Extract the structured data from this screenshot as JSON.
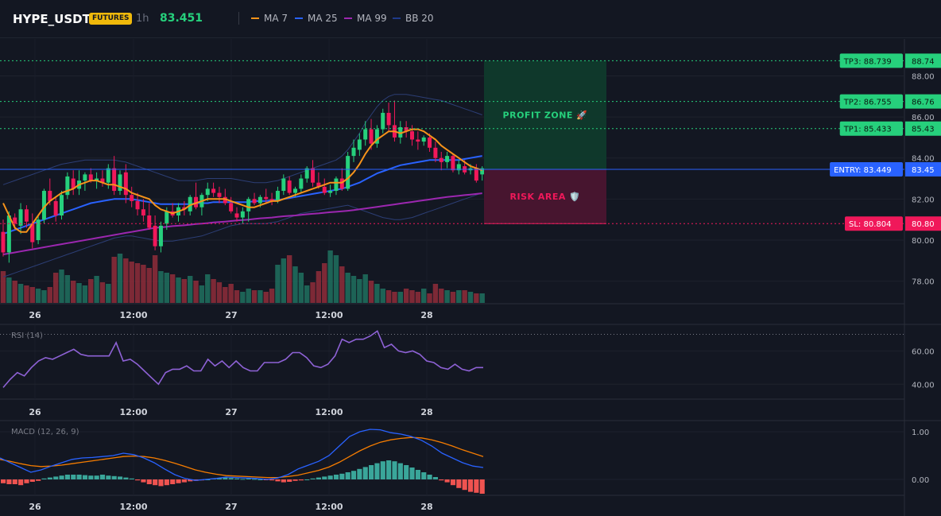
{
  "header": {
    "symbol": "HYPE_USDT",
    "badge": "FUTURES",
    "timeframe": "1h",
    "last_price": "83.451",
    "legend": [
      {
        "label": "MA 7",
        "color": "#f7931a"
      },
      {
        "label": "MA 25",
        "color": "#2962ff"
      },
      {
        "label": "MA 99",
        "color": "#9c27b0"
      },
      {
        "label": "BB 20",
        "color": "#1e3a8a"
      }
    ]
  },
  "colors": {
    "up": "#26d07c",
    "down": "#f0185a",
    "vol_up": "#1f6b5c",
    "vol_down": "#8a2b38",
    "ma7": "#f7931a",
    "ma25": "#2962ff",
    "ma99": "#9c27b0",
    "bb": "#2c3e75",
    "rsi": "#8e62d6",
    "macd": "#2962ff",
    "signal": "#f57c00",
    "hist_up": "#3aa69a",
    "hist_down": "#ef5350"
  },
  "chart_data": [
    {
      "type": "candlestick",
      "ylim": [
        76.9,
        89.8
      ],
      "y_ticks": [
        "78.00",
        "80.00",
        "82.00",
        "84.00",
        "86.00",
        "88.00"
      ],
      "x_ticks": [
        "26",
        "12:00",
        "27",
        "12:00",
        "28"
      ],
      "candles": [
        [
          80.4,
          81.0,
          79.2,
          79.4
        ],
        [
          79.4,
          81.4,
          78.9,
          81.2
        ],
        [
          81.1,
          81.3,
          80.5,
          80.8
        ],
        [
          80.7,
          81.8,
          80.3,
          81.5
        ],
        [
          81.5,
          81.7,
          80.6,
          80.9
        ],
        [
          80.8,
          81.3,
          79.6,
          79.9
        ],
        [
          80.0,
          81.2,
          79.8,
          81.0
        ],
        [
          81.0,
          82.5,
          80.8,
          82.4
        ],
        [
          82.4,
          83.0,
          81.7,
          81.9
        ],
        [
          81.9,
          82.1,
          80.9,
          81.2
        ],
        [
          81.2,
          82.4,
          81.0,
          82.2
        ],
        [
          82.2,
          83.3,
          82.0,
          83.1
        ],
        [
          83.0,
          83.4,
          82.2,
          82.5
        ],
        [
          82.5,
          83.4,
          82.2,
          82.9
        ],
        [
          82.9,
          83.3,
          82.4,
          83.2
        ],
        [
          83.2,
          83.5,
          82.8,
          82.9
        ],
        [
          82.9,
          83.3,
          82.5,
          83.0
        ],
        [
          83.0,
          83.4,
          82.6,
          82.8
        ],
        [
          82.8,
          83.7,
          82.5,
          83.5
        ],
        [
          83.5,
          84.1,
          82.2,
          82.4
        ],
        [
          82.4,
          83.4,
          82.2,
          83.2
        ],
        [
          83.3,
          83.7,
          81.8,
          82.2
        ],
        [
          82.2,
          82.6,
          81.6,
          81.9
        ],
        [
          81.9,
          82.3,
          81.2,
          81.5
        ],
        [
          81.5,
          82.0,
          80.9,
          81.2
        ],
        [
          81.2,
          81.8,
          80.5,
          80.6
        ],
        [
          80.7,
          81.2,
          79.5,
          79.7
        ],
        [
          79.7,
          80.9,
          79.4,
          80.7
        ],
        [
          80.8,
          81.6,
          80.5,
          81.4
        ],
        [
          81.4,
          81.8,
          81.1,
          81.2
        ],
        [
          81.2,
          81.8,
          80.9,
          81.6
        ],
        [
          81.6,
          81.9,
          81.2,
          81.5
        ],
        [
          81.4,
          82.2,
          81.2,
          82.1
        ],
        [
          82.1,
          82.8,
          81.5,
          81.6
        ],
        [
          81.6,
          82.3,
          81.2,
          82.2
        ],
        [
          82.2,
          82.8,
          81.9,
          82.5
        ],
        [
          82.5,
          82.8,
          82.1,
          82.3
        ],
        [
          82.3,
          82.6,
          81.8,
          82.1
        ],
        [
          82.1,
          82.5,
          81.7,
          81.8
        ],
        [
          81.8,
          82.1,
          81.3,
          81.4
        ],
        [
          81.3,
          81.6,
          80.9,
          81.1
        ],
        [
          81.1,
          81.6,
          80.8,
          81.4
        ],
        [
          81.4,
          82.1,
          80.9,
          82.0
        ],
        [
          82.0,
          82.3,
          81.7,
          81.8
        ],
        [
          81.8,
          82.2,
          81.6,
          82.1
        ],
        [
          82.1,
          82.5,
          81.8,
          82.0
        ],
        [
          82.0,
          82.3,
          81.7,
          81.9
        ],
        [
          81.9,
          82.6,
          81.8,
          82.4
        ],
        [
          82.4,
          83.2,
          82.2,
          83.0
        ],
        [
          82.9,
          83.1,
          82.2,
          82.3
        ],
        [
          82.3,
          82.6,
          82.1,
          82.5
        ],
        [
          82.5,
          83.2,
          82.3,
          83.0
        ],
        [
          83.0,
          83.6,
          82.8,
          83.5
        ],
        [
          83.5,
          83.9,
          82.6,
          82.8
        ],
        [
          82.8,
          83.3,
          82.5,
          82.6
        ],
        [
          82.6,
          83.0,
          82.2,
          82.3
        ],
        [
          82.3,
          82.7,
          82.1,
          82.4
        ],
        [
          82.4,
          83.1,
          82.2,
          83.0
        ],
        [
          83.0,
          83.5,
          82.4,
          82.5
        ],
        [
          82.5,
          84.3,
          82.4,
          84.1
        ],
        [
          84.1,
          84.9,
          83.8,
          84.5
        ],
        [
          84.4,
          85.2,
          84.1,
          84.9
        ],
        [
          84.9,
          85.8,
          84.6,
          85.4
        ],
        [
          85.4,
          85.9,
          84.4,
          84.7
        ],
        [
          84.7,
          85.6,
          84.5,
          85.4
        ],
        [
          85.4,
          86.4,
          85.2,
          86.2
        ],
        [
          86.2,
          86.7,
          85.3,
          85.6
        ],
        [
          85.6,
          86.8,
          84.8,
          85.0
        ],
        [
          85.0,
          85.8,
          84.7,
          85.5
        ],
        [
          85.5,
          85.8,
          85.0,
          85.3
        ],
        [
          85.3,
          85.6,
          84.6,
          84.9
        ],
        [
          84.9,
          85.3,
          84.4,
          84.8
        ],
        [
          84.8,
          85.1,
          84.6,
          85.0
        ],
        [
          85.0,
          85.2,
          84.3,
          84.5
        ],
        [
          84.5,
          84.8,
          83.8,
          84.0
        ],
        [
          84.0,
          84.3,
          83.4,
          83.8
        ],
        [
          83.8,
          84.3,
          83.5,
          84.1
        ],
        [
          84.1,
          84.2,
          83.3,
          83.4
        ],
        [
          83.4,
          83.9,
          83.2,
          83.7
        ],
        [
          83.6,
          83.9,
          83.2,
          83.3
        ],
        [
          83.4,
          83.7,
          83.2,
          83.5
        ],
        [
          83.5,
          83.7,
          82.8,
          82.9
        ],
        [
          83.2,
          83.6,
          82.9,
          83.5
        ]
      ],
      "volume": [
        40,
        32,
        28,
        24,
        22,
        20,
        18,
        16,
        20,
        38,
        42,
        35,
        28,
        25,
        22,
        30,
        34,
        26,
        24,
        58,
        62,
        56,
        52,
        50,
        48,
        44,
        60,
        40,
        38,
        36,
        32,
        30,
        34,
        28,
        22,
        36,
        30,
        26,
        20,
        24,
        16,
        14,
        18,
        16,
        16,
        14,
        18,
        48,
        56,
        60,
        46,
        38,
        22,
        26,
        40,
        50,
        66,
        60,
        46,
        38,
        34,
        30,
        36,
        28,
        24,
        18,
        16,
        14,
        14,
        18,
        16,
        14,
        18,
        12,
        24,
        18,
        16,
        14,
        16,
        16,
        14,
        12,
        12
      ],
      "ma7": [
        81.8,
        81.2,
        80.6,
        80.4,
        80.4,
        80.8,
        81.2,
        81.6,
        81.9,
        82.1,
        82.3,
        82.4,
        82.5,
        82.7,
        82.8,
        82.9,
        82.9,
        82.8,
        82.7,
        82.7,
        82.6,
        82.5,
        82.3,
        82.2,
        82.1,
        82.0,
        81.7,
        81.5,
        81.4,
        81.3,
        81.4,
        81.5,
        81.7,
        81.8,
        81.9,
        82.0,
        82.0,
        82.0,
        82.0,
        81.9,
        81.8,
        81.7,
        81.6,
        81.6,
        81.7,
        81.8,
        81.9,
        81.9,
        82.0,
        82.1,
        82.2,
        82.3,
        82.4,
        82.5,
        82.6,
        82.7,
        82.8,
        82.8,
        82.8,
        83.0,
        83.3,
        83.7,
        84.2,
        84.6,
        84.9,
        85.1,
        85.3,
        85.3,
        85.2,
        85.3,
        85.4,
        85.4,
        85.3,
        85.1,
        84.9,
        84.6,
        84.4,
        84.2,
        84.0,
        83.8,
        83.6,
        83.5,
        83.4
      ],
      "ma25": [
        80.3,
        80.4,
        80.5,
        80.6,
        80.7,
        80.8,
        80.9,
        81.0,
        81.1,
        81.2,
        81.3,
        81.4,
        81.5,
        81.6,
        81.7,
        81.8,
        81.85,
        81.9,
        81.95,
        82.0,
        82.0,
        82.0,
        82.0,
        81.95,
        81.9,
        81.85,
        81.8,
        81.75,
        81.75,
        81.75,
        81.75,
        81.75,
        81.75,
        81.8,
        81.8,
        81.8,
        81.85,
        81.85,
        81.85,
        81.85,
        81.85,
        81.85,
        81.85,
        81.9,
        81.9,
        81.9,
        81.95,
        81.95,
        82.0,
        82.05,
        82.1,
        82.15,
        82.2,
        82.25,
        82.3,
        82.35,
        82.4,
        82.45,
        82.5,
        82.6,
        82.7,
        82.8,
        82.95,
        83.1,
        83.25,
        83.35,
        83.45,
        83.55,
        83.65,
        83.7,
        83.75,
        83.8,
        83.85,
        83.9,
        83.9,
        83.9,
        83.9,
        83.9,
        83.9,
        83.95,
        84.0,
        84.05,
        84.1
      ],
      "ma99": [
        79.3,
        79.35,
        79.4,
        79.45,
        79.5,
        79.55,
        79.6,
        79.65,
        79.7,
        79.75,
        79.8,
        79.85,
        79.9,
        79.95,
        80.0,
        80.05,
        80.1,
        80.15,
        80.2,
        80.25,
        80.3,
        80.35,
        80.4,
        80.45,
        80.5,
        80.55,
        80.6,
        80.62,
        80.65,
        80.68,
        80.7,
        80.72,
        80.75,
        80.78,
        80.8,
        80.83,
        80.86,
        80.88,
        80.9,
        80.93,
        80.96,
        80.98,
        81.0,
        81.03,
        81.06,
        81.08,
        81.1,
        81.13,
        81.16,
        81.18,
        81.2,
        81.23,
        81.26,
        81.28,
        81.3,
        81.33,
        81.36,
        81.38,
        81.4,
        81.43,
        81.46,
        81.5,
        81.54,
        81.58,
        81.62,
        81.66,
        81.7,
        81.74,
        81.78,
        81.82,
        81.86,
        81.9,
        81.94,
        81.98,
        82.02,
        82.06,
        82.1,
        82.13,
        82.16,
        82.19,
        82.22,
        82.25,
        82.28
      ],
      "bb_upper": [
        82.7,
        82.8,
        82.9,
        83.0,
        83.1,
        83.2,
        83.3,
        83.4,
        83.5,
        83.6,
        83.7,
        83.75,
        83.8,
        83.85,
        83.9,
        83.9,
        83.9,
        83.9,
        83.9,
        83.9,
        83.85,
        83.8,
        83.7,
        83.6,
        83.5,
        83.4,
        83.3,
        83.2,
        83.1,
        83.0,
        82.9,
        82.9,
        82.9,
        82.9,
        82.95,
        83.0,
        83.0,
        83.0,
        83.0,
        83.0,
        82.95,
        82.9,
        82.85,
        82.8,
        82.8,
        82.8,
        82.85,
        82.9,
        83.0,
        83.1,
        83.2,
        83.3,
        83.4,
        83.5,
        83.6,
        83.7,
        83.8,
        83.9,
        84.1,
        84.4,
        84.8,
        85.2,
        85.7,
        86.1,
        86.5,
        86.8,
        87.0,
        87.1,
        87.1,
        87.1,
        87.05,
        87.0,
        86.95,
        86.9,
        86.85,
        86.8,
        86.7,
        86.6,
        86.5,
        86.4,
        86.3,
        86.2,
        86.1
      ],
      "bb_lower": [
        78.2,
        78.3,
        78.4,
        78.5,
        78.6,
        78.7,
        78.8,
        78.9,
        79.0,
        79.1,
        79.2,
        79.3,
        79.4,
        79.5,
        79.6,
        79.7,
        79.8,
        79.9,
        80.0,
        80.1,
        80.15,
        80.2,
        80.2,
        80.15,
        80.1,
        80.05,
        80.0,
        79.95,
        79.95,
        79.95,
        80.0,
        80.05,
        80.1,
        80.15,
        80.2,
        80.3,
        80.4,
        80.5,
        80.6,
        80.7,
        80.75,
        80.8,
        80.8,
        80.8,
        80.8,
        80.8,
        80.85,
        80.9,
        81.0,
        81.1,
        81.2,
        81.3,
        81.35,
        81.4,
        81.45,
        81.5,
        81.55,
        81.6,
        81.65,
        81.7,
        81.6,
        81.5,
        81.4,
        81.3,
        81.2,
        81.1,
        81.05,
        81.0,
        81.0,
        81.05,
        81.1,
        81.2,
        81.3,
        81.4,
        81.5,
        81.6,
        81.7,
        81.8,
        81.9,
        82.0,
        82.1,
        82.2,
        82.3
      ]
    },
    {
      "type": "line",
      "title": "RSI (14)",
      "ylim": [
        32,
        75
      ],
      "y_ticks": [
        "60.00",
        "40.00"
      ],
      "overbought": 70,
      "x_ticks": [
        "26",
        "12:00",
        "27",
        "12:00",
        "28"
      ],
      "values": [
        38,
        43,
        47,
        45,
        50,
        54,
        56,
        55,
        57,
        59,
        61,
        58,
        57,
        57,
        57,
        57,
        65,
        54,
        55,
        52,
        48,
        44,
        40,
        47,
        49,
        49,
        51,
        48,
        48,
        55,
        51,
        54,
        50,
        54,
        50,
        48,
        48,
        53,
        53,
        53,
        55,
        59,
        59,
        56,
        51,
        50,
        52,
        57,
        67,
        65,
        67,
        67,
        69,
        72,
        62,
        64,
        60,
        59,
        60,
        58,
        54,
        53,
        50,
        49,
        52,
        49,
        48,
        50,
        50
      ]
    },
    {
      "type": "line",
      "title": "MACD (12, 26, 9)",
      "ylim": [
        -0.3,
        1.2
      ],
      "y_ticks": [
        "1.00",
        "0.00"
      ],
      "x_ticks": [
        "26",
        "12:00",
        "27",
        "12:00",
        "28"
      ],
      "macd": [
        0.45,
        0.35,
        0.25,
        0.15,
        0.2,
        0.28,
        0.35,
        0.42,
        0.45,
        0.46,
        0.48,
        0.5,
        0.55,
        0.52,
        0.45,
        0.35,
        0.22,
        0.1,
        0.02,
        -0.02,
        0.0,
        0.02,
        0.05,
        0.04,
        0.03,
        0.02,
        0.0,
        0.03,
        0.1,
        0.22,
        0.3,
        0.38,
        0.5,
        0.7,
        0.9,
        1.0,
        1.05,
        1.04,
        0.98,
        0.95,
        0.9,
        0.82,
        0.7,
        0.55,
        0.45,
        0.35,
        0.28,
        0.25
      ],
      "signal": [
        0.42,
        0.38,
        0.33,
        0.29,
        0.27,
        0.28,
        0.3,
        0.33,
        0.36,
        0.39,
        0.42,
        0.45,
        0.48,
        0.49,
        0.48,
        0.45,
        0.4,
        0.34,
        0.27,
        0.2,
        0.15,
        0.11,
        0.08,
        0.07,
        0.06,
        0.05,
        0.04,
        0.04,
        0.06,
        0.09,
        0.14,
        0.19,
        0.26,
        0.36,
        0.48,
        0.6,
        0.7,
        0.78,
        0.83,
        0.86,
        0.88,
        0.87,
        0.83,
        0.77,
        0.7,
        0.62,
        0.55,
        0.48
      ],
      "histogram": [
        -0.08,
        -0.1,
        -0.1,
        -0.12,
        -0.08,
        -0.05,
        -0.03,
        0.02,
        0.04,
        0.06,
        0.08,
        0.1,
        0.1,
        0.1,
        0.09,
        0.08,
        0.08,
        0.1,
        0.08,
        0.07,
        0.06,
        0.04,
        0.02,
        -0.02,
        -0.06,
        -0.1,
        -0.12,
        -0.14,
        -0.12,
        -0.1,
        -0.08,
        -0.06,
        -0.04,
        -0.03,
        -0.02,
        0.0,
        0.02,
        0.03,
        0.04,
        0.03,
        0.02,
        0.01,
        0.02,
        0.01,
        0.0,
        -0.01,
        -0.02,
        -0.04,
        -0.06,
        -0.05,
        -0.03,
        -0.02,
        0.0,
        0.02,
        0.04,
        0.06,
        0.08,
        0.1,
        0.12,
        0.15,
        0.18,
        0.22,
        0.26,
        0.3,
        0.34,
        0.38,
        0.4,
        0.38,
        0.34,
        0.3,
        0.25,
        0.2,
        0.15,
        0.1,
        0.05,
        -0.02,
        -0.06,
        -0.12,
        -0.18,
        -0.22,
        -0.26,
        -0.28,
        -0.3
      ]
    }
  ],
  "trade_levels": {
    "tp3": {
      "tag": "TP3: 88.739",
      "axis": "88.74",
      "value": 88.739
    },
    "tp2": {
      "tag": "TP2: 86.755",
      "axis": "86.76",
      "value": 86.755
    },
    "tp1": {
      "tag": "TP1: 85.433",
      "axis": "85.43",
      "value": 85.433
    },
    "entry": {
      "tag": "ENTRY: 83.449",
      "axis": "83.45",
      "value": 83.449
    },
    "sl": {
      "tag": "SL: 80.804",
      "axis": "80.80",
      "value": 80.804
    },
    "profit_label": "PROFIT ZONE 🚀",
    "risk_label": "RISK AREA 🛡️"
  }
}
